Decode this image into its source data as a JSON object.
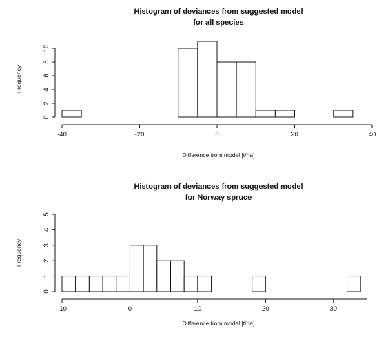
{
  "chart_data": [
    {
      "type": "bar",
      "title": "Histogram of deviances from suggested model",
      "subtitle": "for all species",
      "xlabel": "Difference from model [t/ha]",
      "ylabel": "Frequency",
      "xlim": [
        -40,
        40
      ],
      "ylim": [
        0,
        11
      ],
      "xticks": [
        "-40",
        "-20",
        "0",
        "20",
        "40"
      ],
      "yticks": [
        "0",
        "2",
        "4",
        "6",
        "8",
        "10"
      ],
      "bin_width": 5,
      "bins": [
        {
          "x0": -40,
          "x1": -35,
          "count": 1
        },
        {
          "x0": -10,
          "x1": -5,
          "count": 10
        },
        {
          "x0": -5,
          "x1": 0,
          "count": 11
        },
        {
          "x0": 0,
          "x1": 5,
          "count": 8
        },
        {
          "x0": 5,
          "x1": 10,
          "count": 8
        },
        {
          "x0": 10,
          "x1": 15,
          "count": 1
        },
        {
          "x0": 15,
          "x1": 20,
          "count": 1
        },
        {
          "x0": 30,
          "x1": 35,
          "count": 1
        }
      ],
      "grid": false
    },
    {
      "type": "bar",
      "title": "Histogram of deviances from suggested model",
      "subtitle": "for Norway spruce",
      "xlabel": "Difference from model [t/ha]",
      "ylabel": "Frequency",
      "xlim": [
        -10,
        35
      ],
      "ylim": [
        0,
        5
      ],
      "xticks": [
        "-10",
        "0",
        "10",
        "20",
        "30"
      ],
      "yticks": [
        "0",
        "1",
        "2",
        "3",
        "4",
        "5"
      ],
      "bin_width": 2,
      "bins": [
        {
          "x0": -10,
          "x1": -8,
          "count": 1
        },
        {
          "x0": -8,
          "x1": -6,
          "count": 1
        },
        {
          "x0": -6,
          "x1": -4,
          "count": 1
        },
        {
          "x0": -4,
          "x1": -2,
          "count": 1
        },
        {
          "x0": -2,
          "x1": 0,
          "count": 1
        },
        {
          "x0": 0,
          "x1": 2,
          "count": 3
        },
        {
          "x0": 2,
          "x1": 4,
          "count": 3
        },
        {
          "x0": 4,
          "x1": 6,
          "count": 2
        },
        {
          "x0": 6,
          "x1": 8,
          "count": 2
        },
        {
          "x0": 8,
          "x1": 10,
          "count": 1
        },
        {
          "x0": 10,
          "x1": 12,
          "count": 1
        },
        {
          "x0": 18,
          "x1": 20,
          "count": 1
        },
        {
          "x0": 32,
          "x1": 34,
          "count": 1
        }
      ],
      "grid": false
    }
  ]
}
